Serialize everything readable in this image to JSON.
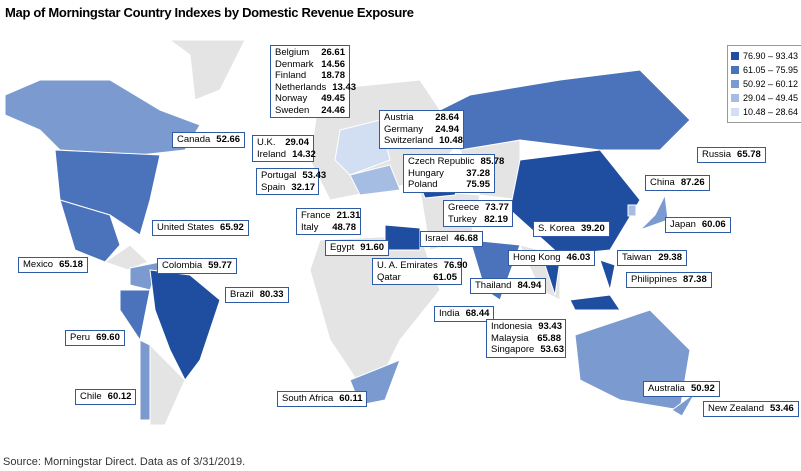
{
  "title": "Map of Morningstar Country Indexes by Domestic Revenue Exposure",
  "legend": [
    {
      "label": "76.90 – 93.43",
      "color": "#1f4ea1"
    },
    {
      "label": "61.05 – 75.95",
      "color": "#4a73bb"
    },
    {
      "label": "50.92 – 60.12",
      "color": "#7b9bd0"
    },
    {
      "label": "29.04 – 49.45",
      "color": "#a5bde2"
    },
    {
      "label": "10.48 – 28.64",
      "color": "#d2def1"
    }
  ],
  "labels": [
    {
      "rows": [
        {
          "name": "Canada",
          "value": "52.66"
        }
      ]
    },
    {
      "rows": [
        {
          "name": "United States",
          "value": "65.92"
        }
      ]
    },
    {
      "rows": [
        {
          "name": "Mexico",
          "value": "65.18"
        }
      ]
    },
    {
      "rows": [
        {
          "name": "Colombia",
          "value": "59.77"
        }
      ]
    },
    {
      "rows": [
        {
          "name": "Brazil",
          "value": "80.33"
        }
      ]
    },
    {
      "rows": [
        {
          "name": "Peru",
          "value": "69.60"
        }
      ]
    },
    {
      "rows": [
        {
          "name": "Chile",
          "value": "60.12"
        }
      ]
    },
    {
      "rows": [
        {
          "name": "Belgium",
          "value": "26.61"
        },
        {
          "name": "Denmark",
          "value": "14.56"
        },
        {
          "name": "Finland",
          "value": "18.78"
        },
        {
          "name": "Netherlands",
          "value": "13.43"
        },
        {
          "name": "Norway",
          "value": "49.45"
        },
        {
          "name": "Sweden",
          "value": "24.46"
        }
      ]
    },
    {
      "rows": [
        {
          "name": "Austria",
          "value": "28.64"
        },
        {
          "name": "Germany",
          "value": "24.94"
        },
        {
          "name": "Switzerland",
          "value": "10.48"
        }
      ]
    },
    {
      "rows": [
        {
          "name": "U.K.",
          "value": "29.04"
        },
        {
          "name": "Ireland",
          "value": "14.32"
        }
      ]
    },
    {
      "rows": [
        {
          "name": "Portugal",
          "value": "53.43"
        },
        {
          "name": "Spain",
          "value": "32.17"
        }
      ]
    },
    {
      "rows": [
        {
          "name": "Czech Republic",
          "value": "85.78"
        },
        {
          "name": "Hungary",
          "value": "37.28"
        },
        {
          "name": "Poland",
          "value": "75.95"
        }
      ]
    },
    {
      "rows": [
        {
          "name": "France",
          "value": "21.31"
        },
        {
          "name": "Italy",
          "value": "48.78"
        }
      ]
    },
    {
      "rows": [
        {
          "name": "Greece",
          "value": "73.77"
        },
        {
          "name": "Turkey",
          "value": "82.19"
        }
      ]
    },
    {
      "rows": [
        {
          "name": "Egypt",
          "value": "91.60"
        }
      ]
    },
    {
      "rows": [
        {
          "name": "Israel",
          "value": "46.68"
        }
      ]
    },
    {
      "rows": [
        {
          "name": "U. A. Emirates",
          "value": "76.90"
        },
        {
          "name": "Qatar",
          "value": "61.05"
        }
      ]
    },
    {
      "rows": [
        {
          "name": "South Africa",
          "value": "60.11"
        }
      ]
    },
    {
      "rows": [
        {
          "name": "Thailand",
          "value": "84.94"
        }
      ]
    },
    {
      "rows": [
        {
          "name": "India",
          "value": "68.44"
        }
      ]
    },
    {
      "rows": [
        {
          "name": "Indonesia",
          "value": "93.43"
        },
        {
          "name": "Malaysia",
          "value": "65.88"
        },
        {
          "name": "Singapore",
          "value": "53.63"
        }
      ]
    },
    {
      "rows": [
        {
          "name": "Hong Kong",
          "value": "46.03"
        }
      ]
    },
    {
      "rows": [
        {
          "name": "S. Korea",
          "value": "39.20"
        }
      ]
    },
    {
      "rows": [
        {
          "name": "Taiwan",
          "value": "29.38"
        }
      ]
    },
    {
      "rows": [
        {
          "name": "Philippines",
          "value": "87.38"
        }
      ]
    },
    {
      "rows": [
        {
          "name": "Japan",
          "value": "60.06"
        }
      ]
    },
    {
      "rows": [
        {
          "name": "China",
          "value": "87.26"
        }
      ]
    },
    {
      "rows": [
        {
          "name": "Russia",
          "value": "65.78"
        }
      ]
    },
    {
      "rows": [
        {
          "name": "Australia",
          "value": "50.92"
        }
      ]
    },
    {
      "rows": [
        {
          "name": "New Zealand",
          "value": "53.46"
        }
      ]
    }
  ],
  "source": "Source: Morningstar Direct. Data as of 3/31/2019."
}
